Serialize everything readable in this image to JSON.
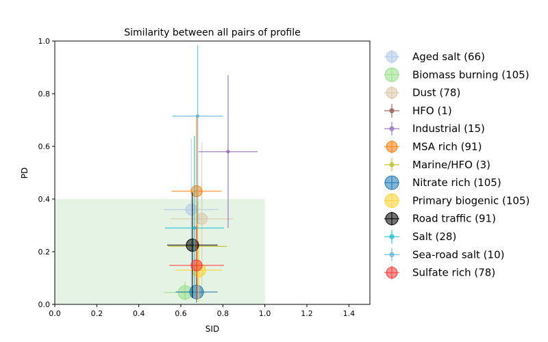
{
  "chart_data": {
    "type": "scatter",
    "title": "Similarity between all pairs of profile",
    "xlabel": "SID",
    "ylabel": "PD",
    "xlim": [
      0,
      1.5
    ],
    "ylim": [
      0,
      1.0
    ],
    "x_ticks": [
      "0.0",
      "0.2",
      "0.4",
      "0.6",
      "0.8",
      "1.0",
      "1.2",
      "1.4"
    ],
    "y_ticks": [
      "0.0",
      "0.2",
      "0.4",
      "0.6",
      "0.8",
      "1.0"
    ],
    "grid": false,
    "legend_position": "right-outside",
    "shaded_region": {
      "x": [
        0,
        1.0
      ],
      "y": [
        0,
        0.4
      ],
      "color": "#2ca02c",
      "opacity": 0.12
    },
    "series": [
      {
        "name": "Aged salt (66)",
        "color": "#aec7e8",
        "x": 0.65,
        "y": 0.36,
        "x_err": 0.13,
        "y_err_low": 0.31,
        "y_err_high": 0.27,
        "size": 8
      },
      {
        "name": "Biomass burning (105)",
        "color": "#98df8a",
        "x": 0.62,
        "y": 0.045,
        "x_err": 0.1,
        "y_err_low": 0.03,
        "y_err_high": 0.04,
        "size": 10
      },
      {
        "name": "Dust (78)",
        "color": "#dbc7a9",
        "x": 0.7,
        "y": 0.325,
        "x_err": 0.15,
        "y_err_low": 0.3,
        "y_err_high": 0.29,
        "size": 8
      },
      {
        "name": "HFO (1)",
        "color": "#8c564b",
        "x": 0.68,
        "y": 0.22,
        "x_err": 0,
        "y_err_low": 0,
        "y_err_high": 0,
        "size": 2
      },
      {
        "name": "Industrial (15)",
        "color": "#9467bd",
        "x": 0.825,
        "y": 0.58,
        "x_err": 0.14,
        "y_err_low": 0.29,
        "y_err_high": 0.29,
        "size": 2
      },
      {
        "name": "MSA rich (91)",
        "color": "#ff7f0e",
        "x": 0.675,
        "y": 0.43,
        "x_err": 0.12,
        "y_err_low": 0.4,
        "y_err_high": 0.29,
        "size": 8
      },
      {
        "name": "Marine/HFO (3)",
        "color": "#bcbd22",
        "x": 0.68,
        "y": 0.22,
        "x_err": 0.14,
        "y_err_low": 0.15,
        "y_err_high": 0.17,
        "size": 2
      },
      {
        "name": "Nitrate rich (105)",
        "color": "#1f77b4",
        "x": 0.675,
        "y": 0.047,
        "x_err": 0.1,
        "y_err_low": 0.04,
        "y_err_high": 0.1,
        "size": 10
      },
      {
        "name": "Primary biogenic (105)",
        "color": "#ffd22e",
        "x": 0.685,
        "y": 0.13,
        "x_err": 0.11,
        "y_err_low": 0.12,
        "y_err_high": 0.11,
        "size": 10
      },
      {
        "name": "Road traffic (91)",
        "color": "#000000",
        "x": 0.655,
        "y": 0.225,
        "x_err": 0.12,
        "y_err_low": 0.2,
        "y_err_high": 0.2,
        "size": 9
      },
      {
        "name": "Salt (28)",
        "color": "#17becf",
        "x": 0.665,
        "y": 0.29,
        "x_err": 0.14,
        "y_err_low": 0.26,
        "y_err_high": 0.35,
        "size": 2
      },
      {
        "name": "Sea-road salt (10)",
        "color": "#5ab4d6",
        "x": 0.68,
        "y": 0.715,
        "x_err": 0.12,
        "y_err_low": 0.41,
        "y_err_high": 0.27,
        "size": 2
      },
      {
        "name": "Sulfate rich (78)",
        "color": "#ff3a3a",
        "x": 0.675,
        "y": 0.148,
        "x_err": 0.13,
        "y_err_low": 0.13,
        "y_err_high": 0.15,
        "size": 8
      }
    ]
  }
}
